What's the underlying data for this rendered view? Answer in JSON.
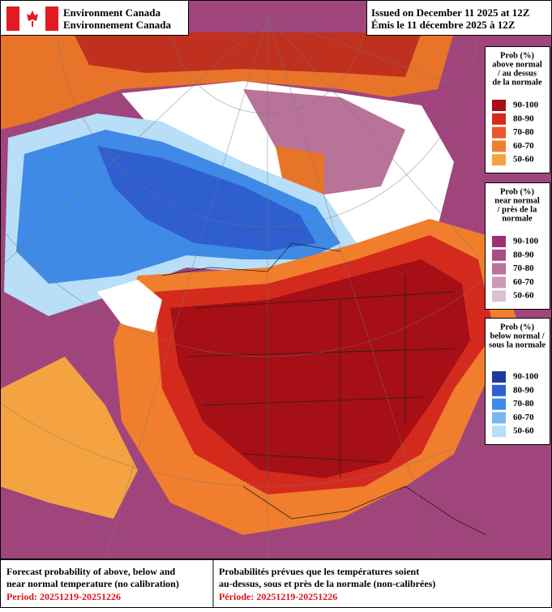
{
  "header": {
    "agency_en": "Environment Canada",
    "agency_fr": "Environnement Canada",
    "issued_en": "Issued on December 11 2025 at 12Z",
    "issued_fr": "Émis le 11 décembre 2025 à 12Z"
  },
  "legends": [
    {
      "title": [
        "Prob (%)",
        "above normal",
        "/ au dessus",
        "de la normale"
      ],
      "items": [
        {
          "label": "90-100",
          "color": "#a50f15"
        },
        {
          "label": "80-90",
          "color": "#d42a1e"
        },
        {
          "label": "70-80",
          "color": "#e8572a"
        },
        {
          "label": "60-70",
          "color": "#f07e2c"
        },
        {
          "label": "50-60",
          "color": "#f4a340"
        }
      ]
    },
    {
      "title": [
        "Prob (%)",
        "near normal",
        "/ près de la",
        "normale"
      ],
      "items": [
        {
          "label": "90-100",
          "color": "#9c2f72"
        },
        {
          "label": "80-90",
          "color": "#a94f84"
        },
        {
          "label": "70-80",
          "color": "#b87398"
        },
        {
          "label": "60-70",
          "color": "#c99ab5"
        },
        {
          "label": "50-60",
          "color": "#dcc1d2"
        }
      ]
    },
    {
      "title": [
        "Prob (%)",
        "below normal /",
        "sous la normale"
      ],
      "items": [
        {
          "label": "90-100",
          "color": "#1c3a9e"
        },
        {
          "label": "80-90",
          "color": "#2f5fcf"
        },
        {
          "label": "70-80",
          "color": "#3f8ae6"
        },
        {
          "label": "60-70",
          "color": "#78b6f0"
        },
        {
          "label": "50-60",
          "color": "#b8def8"
        }
      ]
    }
  ],
  "footer": {
    "en": [
      "Forecast probability of above, below and",
      "near normal temperature (no calibration)"
    ],
    "period_en": "Period: 20251219-20251226",
    "fr": [
      "Probabilités prévues que les températures soient",
      "au-dessus, sous et près de la normale (non-calibrées)"
    ],
    "period_fr": "Période: 20251219-20251226"
  }
}
